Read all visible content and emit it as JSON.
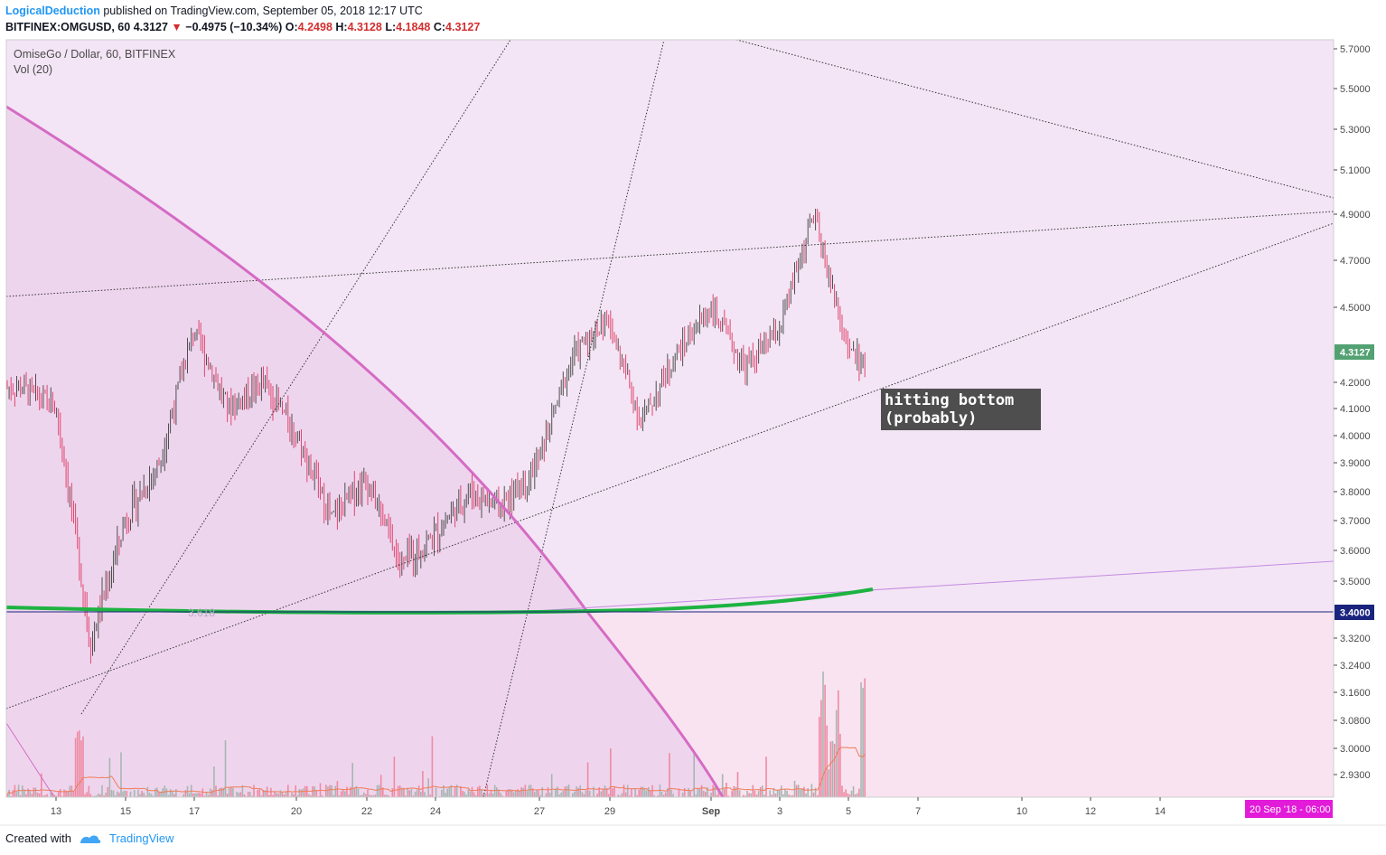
{
  "header": {
    "author": "LogicalDeduction",
    "published": " published on TradingView.com, September 05, 2018 12:17 UTC",
    "symbol": "BITFINEX:OMGUSD, 60",
    "last": "4.3127",
    "change": "−0.4975 (−10.34%)",
    "o_label": "O:",
    "o_val": "4.2498",
    "h_label": "H:",
    "h_val": "4.3128",
    "l_label": "L:",
    "l_val": "4.1848",
    "c_label": "C:",
    "c_val": "4.3127"
  },
  "legend": {
    "title": "OmiseGo / Dollar, 60, BITFINEX",
    "vol": "Vol (20)"
  },
  "annotation": "hitting bottom\n(probably)",
  "footer": {
    "created": "Created with",
    "brand": "TradingView"
  },
  "colors": {
    "bg_main": "#f3e5f5",
    "bg_shade": "#ecd2ec",
    "curve": "#d56bc4",
    "green": "#1db341",
    "up": "#4f4f4f",
    "down": "#e0476e",
    "vol_up": "#a7b6b2",
    "vol_down": "#ee8ba3",
    "vol_ma": "#f07d57",
    "last_badge": "#53a173",
    "level_badge": "#1a237e",
    "date_badge": "#e21bd9"
  },
  "chart_data": {
    "type": "candlestick",
    "title": "OmiseGo / Dollar, 60, BITFINEX",
    "ylim": [
      2.86,
      5.75
    ],
    "y_ticks": [
      "5.7000",
      "5.5000",
      "5.3000",
      "5.1000",
      "4.9000",
      "4.7000",
      "4.5000",
      "4.3127",
      "4.2000",
      "4.1000",
      "4.0000",
      "3.9000",
      "3.8000",
      "3.7000",
      "3.6000",
      "3.5000",
      "3.4000",
      "3.3200",
      "3.2400",
      "3.1600",
      "3.0800",
      "3.0000",
      "2.9300"
    ],
    "x_ticks": [
      "13",
      "15",
      "17",
      "20",
      "22",
      "24",
      "27",
      "29",
      "Sep",
      "3",
      "5",
      "7",
      "10",
      "12",
      "14"
    ],
    "last_price": "4.3127",
    "horizontal_level": "3.4000",
    "faint_label": "3.618",
    "date_badge": "20 Sep '18 - 06:00",
    "approx_path": [
      {
        "x": "Aug 12",
        "close": 4.18
      },
      {
        "x": "Aug 13",
        "close": 4.1
      },
      {
        "x": "Aug 14",
        "close": 3.3
      },
      {
        "x": "Aug 15",
        "close": 3.7
      },
      {
        "x": "Aug 16",
        "close": 3.9
      },
      {
        "x": "Aug 17",
        "close": 4.4
      },
      {
        "x": "Aug 18",
        "close": 4.1
      },
      {
        "x": "Aug 19",
        "close": 4.2
      },
      {
        "x": "Aug 20",
        "close": 4.0
      },
      {
        "x": "Aug 21",
        "close": 3.7
      },
      {
        "x": "Aug 22",
        "close": 3.85
      },
      {
        "x": "Aug 23",
        "close": 3.55
      },
      {
        "x": "Aug 24",
        "close": 3.65
      },
      {
        "x": "Aug 25",
        "close": 3.8
      },
      {
        "x": "Aug 26",
        "close": 3.75
      },
      {
        "x": "Aug 27",
        "close": 3.9
      },
      {
        "x": "Aug 28",
        "close": 4.3
      },
      {
        "x": "Aug 29",
        "close": 4.45
      },
      {
        "x": "Aug 30",
        "close": 4.05
      },
      {
        "x": "Aug 31",
        "close": 4.3
      },
      {
        "x": "Sep 1",
        "close": 4.5
      },
      {
        "x": "Sep 2",
        "close": 4.25
      },
      {
        "x": "Sep 3",
        "close": 4.4
      },
      {
        "x": "Sep 4",
        "close": 4.9
      },
      {
        "x": "Sep 5",
        "close": 4.31
      }
    ]
  }
}
